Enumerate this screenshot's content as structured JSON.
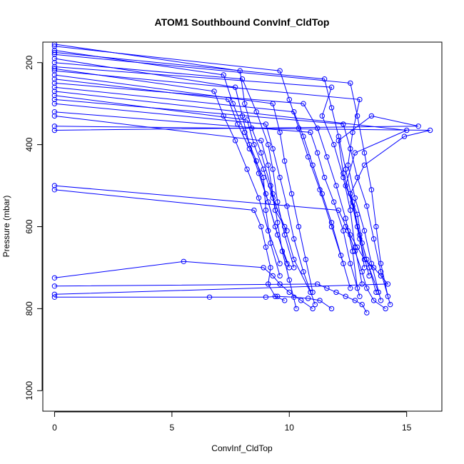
{
  "chart_data": {
    "type": "line",
    "title": "ATOM1 Southbound ConvInf_CldTop",
    "xlabel": "ConvInf_CldTop",
    "ylabel": "Pressure (mbar)",
    "xlim": [
      -0.5,
      16.5
    ],
    "ylim": [
      1050,
      150
    ],
    "y_axis_inverted": true,
    "x_ticks": [
      0,
      5,
      10,
      15
    ],
    "y_ticks": [
      200,
      400,
      600,
      800,
      1000
    ],
    "grid": false,
    "legend": "none",
    "series_style": {
      "color": "#0000ff",
      "marker": "open-circle",
      "line": "solid"
    },
    "series": [
      {
        "x": [
          0,
          7.9,
          8.1,
          8.4,
          8.8,
          9.2,
          9.4,
          9.9
        ],
        "y": [
          155,
          220,
          300,
          360,
          420,
          500,
          560,
          610
        ]
      },
      {
        "x": [
          0,
          8.0,
          8.6,
          9.1,
          9.3,
          9.5,
          9.8,
          10.2
        ],
        "y": [
          200,
          240,
          320,
          400,
          460,
          540,
          620,
          700
        ]
      },
      {
        "x": [
          0,
          7.4,
          7.8,
          8.3,
          8.9,
          9.0,
          9.2,
          9.6
        ],
        "y": [
          240,
          290,
          350,
          410,
          480,
          560,
          640,
          720
        ]
      },
      {
        "x": [
          0,
          15.0,
          12.8,
          12.4,
          12.9,
          13.1,
          13.4,
          13.8
        ],
        "y": [
          270,
          365,
          420,
          500,
          570,
          640,
          700,
          760
        ]
      },
      {
        "x": [
          0,
          16.0,
          14.9,
          13.2,
          12.6,
          12.9,
          13.3,
          13.7
        ],
        "y": [
          355,
          365,
          380,
          450,
          520,
          600,
          680,
          760
        ]
      },
      {
        "x": [
          0,
          15.5,
          13.5,
          12.1,
          12.3,
          12.7,
          13.0,
          13.4
        ],
        "y": [
          365,
          355,
          330,
          390,
          470,
          550,
          630,
          720
        ]
      },
      {
        "x": [
          0,
          11.8,
          11.4,
          11.9,
          12.3,
          12.6,
          12.8,
          13.1
        ],
        "y": [
          210,
          260,
          330,
          400,
          480,
          560,
          650,
          740
        ]
      },
      {
        "x": [
          0,
          10.6,
          11.2,
          11.6,
          12.0,
          12.4,
          12.7,
          12.9
        ],
        "y": [
          250,
          300,
          360,
          430,
          500,
          580,
          660,
          750
        ]
      },
      {
        "x": [
          0,
          9.3,
          9.6,
          9.8,
          10.1,
          10.4,
          10.7,
          11.0
        ],
        "y": [
          230,
          300,
          370,
          440,
          520,
          600,
          680,
          760
        ]
      },
      {
        "x": [
          0,
          8.5,
          8.8,
          9.0,
          9.2,
          9.1,
          9.4,
          9.8
        ],
        "y": [
          510,
          560,
          600,
          650,
          700,
          740,
          770,
          780
        ]
      },
      {
        "x": [
          0,
          12.1,
          12.5,
          12.8,
          13.1,
          13.3,
          13.6,
          14.1
        ],
        "y": [
          500,
          560,
          610,
          660,
          710,
          750,
          780,
          800
        ]
      },
      {
        "x": [
          0,
          5.5,
          8.9,
          9.3,
          9.6,
          10.0,
          10.5,
          11.0
        ],
        "y": [
          725,
          685,
          700,
          720,
          740,
          760,
          780,
          800
        ]
      },
      {
        "x": [
          0,
          11.2,
          11.6,
          12.0,
          12.4,
          12.8,
          13.1,
          13.3
        ],
        "y": [
          745,
          740,
          750,
          760,
          770,
          780,
          790,
          810
        ]
      },
      {
        "x": [
          0,
          6.6,
          9.0,
          9.5,
          10.2,
          10.8,
          11.3,
          11.8
        ],
        "y": [
          772,
          772,
          772,
          770,
          772,
          775,
          780,
          800
        ]
      },
      {
        "x": [
          0,
          14.2,
          13.9,
          13.6,
          13.2,
          12.9,
          12.6,
          12.4
        ],
        "y": [
          765,
          740,
          720,
          700,
          680,
          650,
          620,
          600
        ]
      },
      {
        "x": [
          0,
          7.2,
          7.6,
          8.1,
          8.6,
          9.0,
          9.4,
          9.9
        ],
        "y": [
          170,
          230,
          300,
          370,
          440,
          520,
          600,
          690
        ]
      },
      {
        "x": [
          0,
          9.6,
          10.0,
          10.4,
          10.8,
          11.3,
          11.8,
          12.3
        ],
        "y": [
          160,
          220,
          290,
          360,
          430,
          510,
          600,
          690
        ]
      },
      {
        "x": [
          0,
          12.6,
          12.9,
          13.2,
          13.5,
          13.7,
          13.9,
          14.2
        ],
        "y": [
          180,
          250,
          330,
          420,
          510,
          600,
          690,
          770
        ]
      },
      {
        "x": [
          0,
          8.2,
          8.5,
          8.9,
          9.3,
          9.8,
          10.2,
          10.9
        ],
        "y": [
          280,
          340,
          400,
          460,
          530,
          600,
          680,
          760
        ]
      },
      {
        "x": [
          0,
          10.9,
          11.2,
          11.5,
          11.9,
          12.3,
          12.6,
          13.0
        ],
        "y": [
          320,
          370,
          420,
          480,
          540,
          610,
          690,
          770
        ]
      },
      {
        "x": [
          0,
          7.7,
          8.0,
          8.3,
          8.7,
          9.1,
          9.5,
          10.0
        ],
        "y": [
          190,
          260,
          330,
          400,
          470,
          540,
          620,
          700
        ]
      },
      {
        "x": [
          0,
          13.0,
          12.7,
          12.5,
          12.8,
          13.2,
          13.5,
          13.9
        ],
        "y": [
          220,
          290,
          370,
          450,
          530,
          610,
          690,
          780
        ]
      },
      {
        "x": [
          0,
          9.0,
          9.3,
          9.6,
          9.9,
          10.2,
          10.6,
          11.1
        ],
        "y": [
          300,
          350,
          410,
          480,
          550,
          630,
          710,
          790
        ]
      },
      {
        "x": [
          0,
          6.8,
          7.2,
          7.7,
          8.2,
          8.7,
          9.1,
          9.6
        ],
        "y": [
          215,
          270,
          330,
          390,
          460,
          530,
          610,
          690
        ]
      },
      {
        "x": [
          0,
          11.5,
          11.8,
          12.1,
          12.4,
          12.7,
          13.0,
          13.2
        ],
        "y": [
          175,
          240,
          310,
          380,
          460,
          540,
          620,
          700
        ]
      },
      {
        "x": [
          0,
          10.2,
          10.6,
          11.0,
          11.4,
          11.8,
          12.2,
          12.6
        ],
        "y": [
          260,
          320,
          380,
          450,
          520,
          590,
          670,
          750
        ]
      },
      {
        "x": [
          0,
          12.3,
          12.6,
          12.9,
          13.3,
          13.6,
          13.9,
          14.3
        ],
        "y": [
          290,
          350,
          410,
          480,
          550,
          630,
          710,
          790
        ]
      },
      {
        "x": [
          0,
          8.8,
          9.1,
          9.3,
          9.5,
          9.7,
          10.0,
          10.3
        ],
        "y": [
          330,
          390,
          450,
          520,
          590,
          660,
          730,
          800
        ]
      }
    ]
  }
}
